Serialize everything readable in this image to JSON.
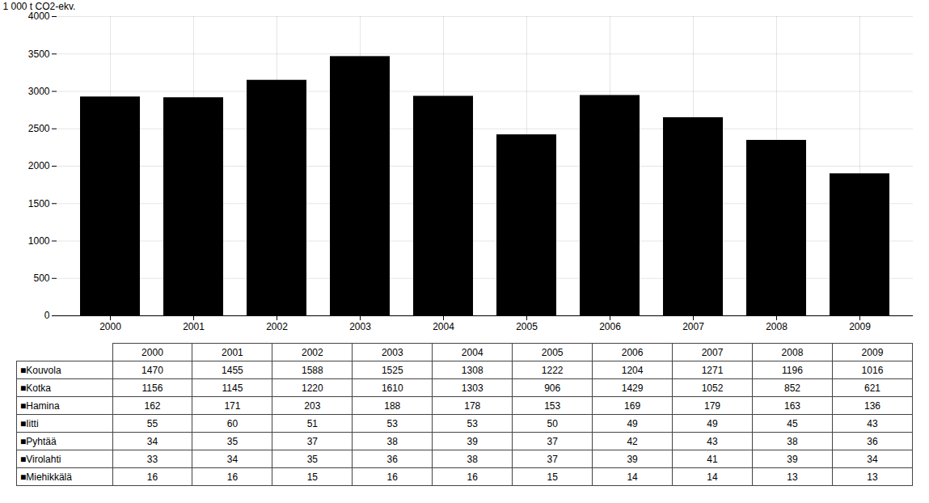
{
  "chart_data": {
    "type": "bar",
    "ylabel": "1 000 t CO2-ekv.",
    "categories": [
      "2000",
      "2001",
      "2002",
      "2003",
      "2004",
      "2005",
      "2006",
      "2007",
      "2008",
      "2009"
    ],
    "values": [
      2926,
      2916,
      3149,
      3466,
      2935,
      2420,
      2946,
      2649,
      2346,
      1899
    ],
    "ylim": [
      0,
      4000
    ],
    "yticks": [
      0,
      500,
      1000,
      1500,
      2000,
      2500,
      3000,
      3500,
      4000
    ],
    "grid": true,
    "table": {
      "columns": [
        "2000",
        "2001",
        "2002",
        "2003",
        "2004",
        "2005",
        "2006",
        "2007",
        "2008",
        "2009"
      ],
      "rows": [
        {
          "label": "■Kouvola",
          "values": [
            1470,
            1455,
            1588,
            1525,
            1308,
            1222,
            1204,
            1271,
            1196,
            1016
          ]
        },
        {
          "label": "■Kotka",
          "values": [
            1156,
            1145,
            1220,
            1610,
            1303,
            906,
            1429,
            1052,
            852,
            621
          ]
        },
        {
          "label": "■Hamina",
          "values": [
            162,
            171,
            203,
            188,
            178,
            153,
            169,
            179,
            163,
            136
          ]
        },
        {
          "label": "■Iitti",
          "values": [
            55,
            60,
            51,
            53,
            53,
            50,
            49,
            49,
            45,
            43
          ]
        },
        {
          "label": "■Pyhtää",
          "values": [
            34,
            35,
            37,
            38,
            39,
            37,
            42,
            43,
            38,
            36
          ]
        },
        {
          "label": "■Virolahti",
          "values": [
            33,
            34,
            35,
            36,
            38,
            37,
            39,
            41,
            39,
            34
          ]
        },
        {
          "label": "■Miehikkälä",
          "values": [
            16,
            16,
            15,
            16,
            16,
            15,
            14,
            14,
            13,
            13
          ]
        }
      ]
    }
  }
}
